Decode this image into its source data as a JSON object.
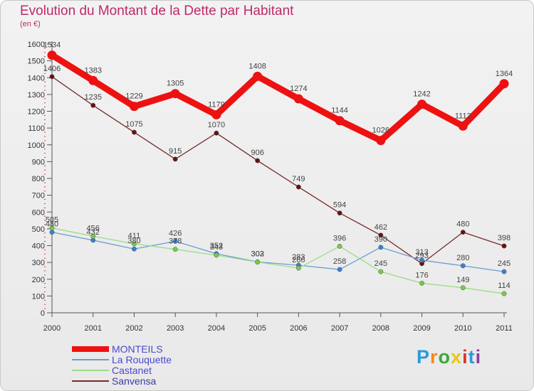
{
  "title": "Evolution du Montant de la Dette par Habitant",
  "subtitle": "(en €)",
  "logo": {
    "text": "Proxiti",
    "letter_colors": [
      "#2b9bd8",
      "#f08a1c",
      "#39a83a",
      "#e8c61a",
      "#d8352c",
      "#2b9bd8",
      "#8a3fa0"
    ]
  },
  "chart_data": {
    "type": "line",
    "x": [
      "2000",
      "2001",
      "2002",
      "2003",
      "2004",
      "2005",
      "2006",
      "2007",
      "2008",
      "2009",
      "2010",
      "2011"
    ],
    "ylim": [
      0,
      1600
    ],
    "yticks": [
      0,
      100,
      200,
      300,
      400,
      500,
      600,
      700,
      800,
      900,
      1000,
      1100,
      1200,
      1300,
      1400,
      1500,
      1600
    ],
    "grid": false,
    "legend_position": "bottom-left",
    "series": [
      {
        "name": "MONTEILS",
        "color": "#ee1111",
        "marker_color": "#ee1111",
        "values": [
          1534,
          1383,
          1229,
          1305,
          1179,
          1408,
          1274,
          1144,
          1026,
          1242,
          1112,
          1364
        ]
      },
      {
        "name": "La Rouquette",
        "color": "#6a9fd0",
        "marker_color": "#3c7fd0",
        "values": [
          480,
          432,
          380,
          426,
          352,
          303,
          283,
          258,
          390,
          313,
          280,
          245
        ]
      },
      {
        "name": "Castanet",
        "color": "#99dd88",
        "marker_color": "#77cc44",
        "values": [
          505,
          456,
          411,
          378,
          343,
          302,
          266,
          396,
          245,
          176,
          149,
          114
        ]
      },
      {
        "name": "Sanvensa",
        "color": "#7a2a2a",
        "marker_color": "#661111",
        "values": [
          1406,
          1235,
          1075,
          915,
          1070,
          906,
          749,
          594,
          462,
          293,
          480,
          398
        ]
      }
    ]
  }
}
